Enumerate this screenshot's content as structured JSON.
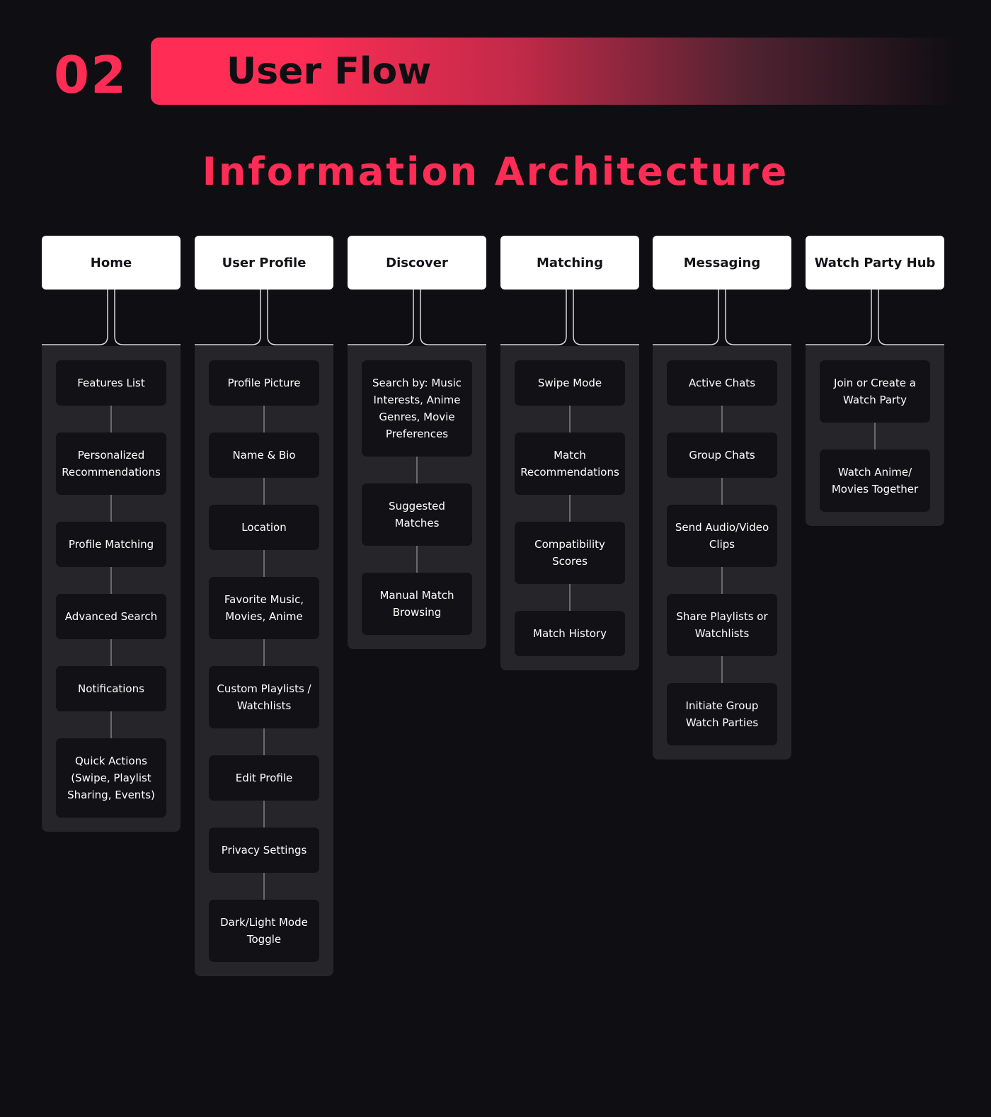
{
  "header": {
    "section_number": "02",
    "section_title": "User Flow"
  },
  "diagram": {
    "title": "Information Architecture",
    "columns": [
      {
        "title": "Home",
        "items": [
          "Features List",
          "Personalized Recommendations",
          "Profile Matching",
          "Advanced Search",
          "Notifications",
          "Quick Actions (Swipe, Playlist Sharing, Events)"
        ]
      },
      {
        "title": "User Profile",
        "items": [
          "Profile Picture",
          "Name & Bio",
          "Location",
          "Favorite Music, Movies, Anime",
          "Custom Playlists / Watchlists",
          "Edit Profile",
          "Privacy Settings",
          "Dark/Light Mode Toggle"
        ]
      },
      {
        "title": "Discover",
        "items": [
          "Search by: Music Interests, Anime Genres, Movie Preferences",
          "Suggested Matches",
          "Manual Match Browsing"
        ]
      },
      {
        "title": "Matching",
        "items": [
          "Swipe Mode",
          "Match Recommendations",
          "Compatibility Scores",
          "Match History"
        ]
      },
      {
        "title": "Messaging",
        "items": [
          "Active Chats",
          "Group Chats",
          "Send Audio/Video Clips",
          "Share Playlists or Watchlists",
          "Initiate Group Watch Parties"
        ]
      },
      {
        "title": "Watch Party Hub",
        "items": [
          "Join or Create a Watch Party",
          "Watch Anime/ Movies Together"
        ]
      }
    ]
  },
  "colors": {
    "accent": "#ff2d55",
    "background": "#0f0e12",
    "panel": "#26252a",
    "item": "#121115",
    "header_box": "#ffffff"
  }
}
